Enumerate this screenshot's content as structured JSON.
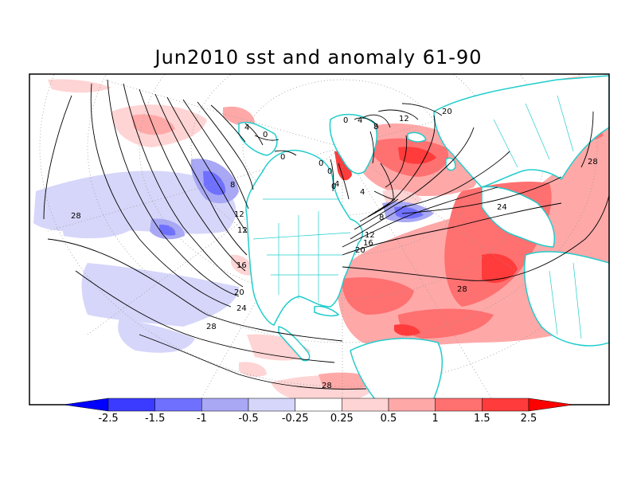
{
  "title": "Jun2010 sst and anomaly 61-90",
  "colors": {
    "land": "#ffffff",
    "coast": "#22cccc",
    "contour": "#000000",
    "grid": "#9a9a9a",
    "frame": "#000000"
  },
  "colorbar": {
    "labels": [
      "-2.5",
      "-1.5",
      "-1",
      "-0.5",
      "-0.25",
      "0.25",
      "0.5",
      "1",
      "1.5",
      "2.5"
    ],
    "colors": [
      "#0000ff",
      "#3b3bff",
      "#7070ff",
      "#a8a8f5",
      "#d6d6fa",
      "#ffffff",
      "#ffd4d4",
      "#ffa8a8",
      "#ff7070",
      "#ff3b3b",
      "#ff0000"
    ]
  },
  "contour_labels": [
    "0",
    "4",
    "0",
    "8",
    "12",
    "12",
    "16",
    "20",
    "24",
    "28",
    "28",
    "28",
    "0",
    "0",
    "4",
    "8",
    "12",
    "20",
    "0",
    "4",
    "0",
    "4",
    "8",
    "12",
    "16",
    "20",
    "24",
    "28",
    "28"
  ]
}
